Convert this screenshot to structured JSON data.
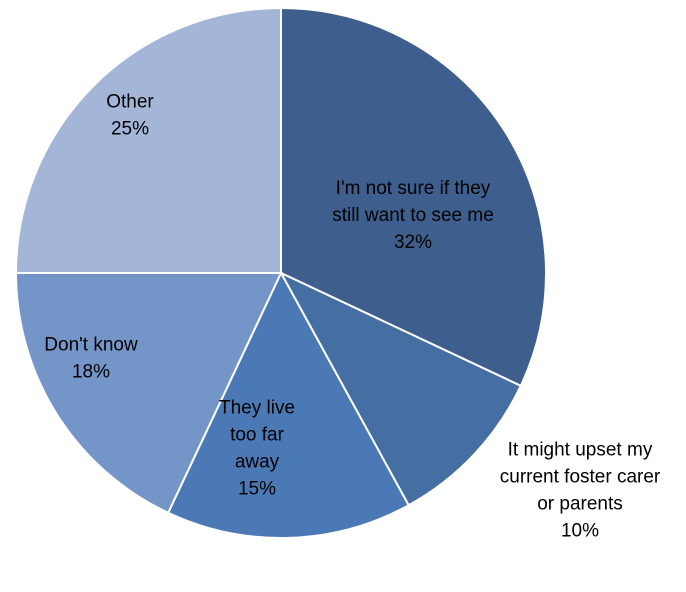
{
  "chart_data": {
    "type": "pie",
    "title": "",
    "slices": [
      {
        "label": [
          "I'm not sure if they",
          "still want to see me"
        ],
        "percent_label": "32%",
        "value": 32,
        "color": "#3e5f8e"
      },
      {
        "label": [
          "It might upset my",
          "current foster carer",
          "or parents"
        ],
        "percent_label": "10%",
        "value": 10,
        "color": "#456ea3"
      },
      {
        "label": [
          "They live",
          "too far",
          "away"
        ],
        "percent_label": "15%",
        "value": 15,
        "color": "#4a79b6"
      },
      {
        "label": [
          "Don't know"
        ],
        "percent_label": "18%",
        "value": 18,
        "color": "#7395c8"
      },
      {
        "label": [
          "Other"
        ],
        "percent_label": "25%",
        "value": 25,
        "color": "#a3b6d8"
      }
    ]
  }
}
